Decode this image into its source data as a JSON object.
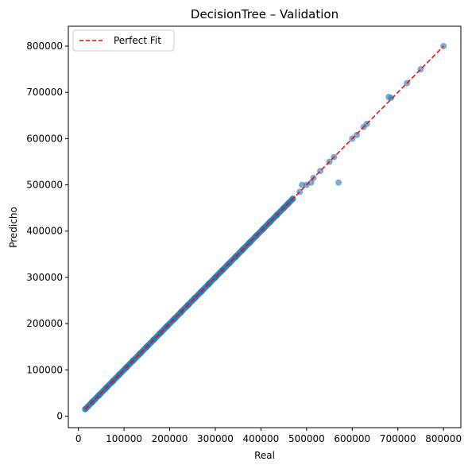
{
  "chart_data": {
    "type": "scatter",
    "title": "DecisionTree – Validation",
    "xlabel": "Real",
    "ylabel": "Predicho",
    "xlim": [
      -22000,
      838000
    ],
    "ylim": [
      -25000,
      843000
    ],
    "xticks": [
      0,
      100000,
      200000,
      300000,
      400000,
      500000,
      600000,
      700000,
      800000
    ],
    "yticks": [
      0,
      100000,
      200000,
      300000,
      400000,
      500000,
      600000,
      700000,
      800000
    ],
    "grid": false,
    "legend_position": "top-left",
    "colors": {
      "points": "#1f77b4",
      "fit_line": "#ff0000"
    },
    "series": [
      {
        "kind": "scatter",
        "x_range_dense": [
          15000,
          470000
        ],
        "points": [
          [
            15000,
            15000
          ],
          [
            30000,
            30000
          ],
          [
            45000,
            45000
          ],
          [
            60000,
            60000
          ],
          [
            75000,
            75000
          ],
          [
            90000,
            90000
          ],
          [
            105000,
            105000
          ],
          [
            120000,
            120000
          ],
          [
            135000,
            135000
          ],
          [
            150000,
            150000
          ],
          [
            165000,
            165000
          ],
          [
            180000,
            180000
          ],
          [
            195000,
            195000
          ],
          [
            210000,
            210000
          ],
          [
            225000,
            225000
          ],
          [
            240000,
            240000
          ],
          [
            255000,
            255000
          ],
          [
            270000,
            270000
          ],
          [
            285000,
            285000
          ],
          [
            300000,
            300000
          ],
          [
            315000,
            315000
          ],
          [
            330000,
            330000
          ],
          [
            345000,
            345000
          ],
          [
            360000,
            360000
          ],
          [
            375000,
            375000
          ],
          [
            390000,
            390000
          ],
          [
            405000,
            405000
          ],
          [
            420000,
            420000
          ],
          [
            435000,
            435000
          ],
          [
            450000,
            450000
          ],
          [
            460000,
            460000
          ],
          [
            470000,
            470000
          ],
          [
            485000,
            485000
          ],
          [
            490000,
            500000
          ],
          [
            500000,
            500000
          ],
          [
            510000,
            505000
          ],
          [
            515000,
            515000
          ],
          [
            530000,
            530000
          ],
          [
            550000,
            550000
          ],
          [
            560000,
            560000
          ],
          [
            570000,
            505000
          ],
          [
            600000,
            600000
          ],
          [
            610000,
            608000
          ],
          [
            625000,
            625000
          ],
          [
            632000,
            632000
          ],
          [
            680000,
            690000
          ],
          [
            685000,
            688000
          ],
          [
            720000,
            720000
          ],
          [
            750000,
            750000
          ],
          [
            800000,
            800000
          ]
        ]
      },
      {
        "kind": "line",
        "name": "Perfect Fit",
        "x": [
          15000,
          800000
        ],
        "y": [
          15000,
          800000
        ]
      }
    ]
  }
}
